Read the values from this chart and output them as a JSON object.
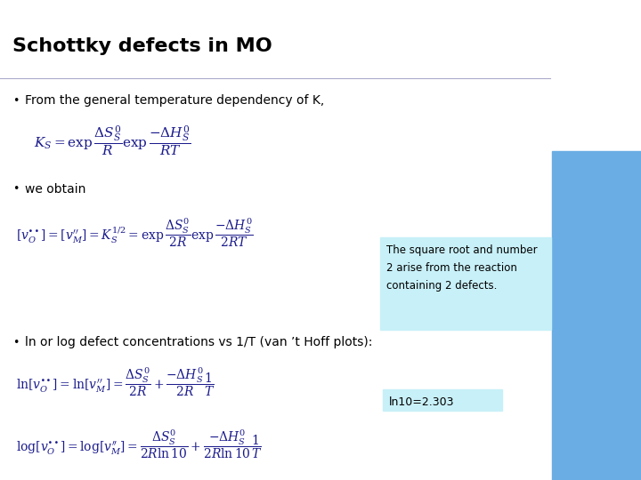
{
  "title": "Schottky defects in MO",
  "title_fontsize": 16,
  "bg_color": "#ffffff",
  "bullet1": "From the general temperature dependency of K,",
  "bullet2": "we obtain",
  "bullet3": "ln or log defect concentrations vs 1/T (van ’t Hoff plots):",
  "note_box_text": "The square root and number\n2 arise from the reaction\ncontaining 2 defects.",
  "note_box_color": "#c8f0f8",
  "ln10_text": "ln10=2.303",
  "ln10_box_color": "#c8f0f8",
  "right_bar_color": "#6aade4",
  "text_color": "#000000",
  "eq_color": "#1a1a8c",
  "fig_width": 7.2,
  "fig_height": 5.4,
  "dpi": 100
}
